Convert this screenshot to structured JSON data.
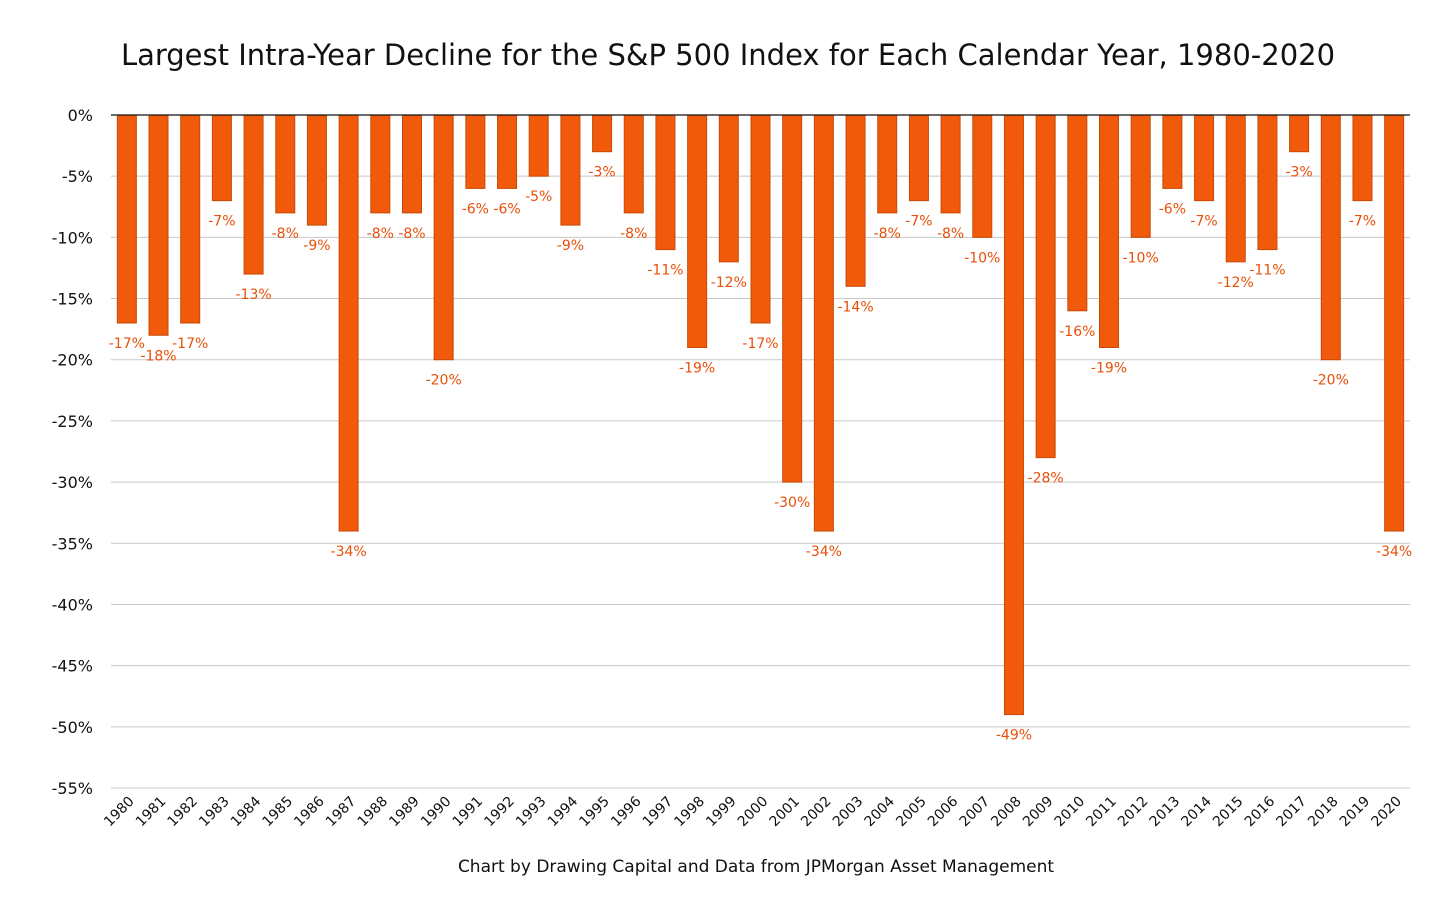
{
  "chart_data": {
    "type": "bar",
    "title": "Largest Intra-Year Decline for the S&P 500 Index for Each Calendar Year, 1980-2020",
    "caption": "Chart by Drawing Capital and Data from JPMorgan Asset Management",
    "categories": [
      "1980",
      "1981",
      "1982",
      "1983",
      "1984",
      "1985",
      "1986",
      "1987",
      "1988",
      "1989",
      "1990",
      "1991",
      "1992",
      "1993",
      "1994",
      "1995",
      "1996",
      "1997",
      "1998",
      "1999",
      "2000",
      "2001",
      "2002",
      "2003",
      "2004",
      "2005",
      "2006",
      "2007",
      "2008",
      "2009",
      "2010",
      "2011",
      "2012",
      "2013",
      "2014",
      "2015",
      "2016",
      "2017",
      "2018",
      "2019",
      "2020"
    ],
    "values": [
      -17,
      -18,
      -17,
      -7,
      -13,
      -8,
      -9,
      -34,
      -8,
      -8,
      -20,
      -6,
      -6,
      -5,
      -9,
      -3,
      -8,
      -11,
      -19,
      -12,
      -17,
      -30,
      -34,
      -14,
      -8,
      -7,
      -8,
      -10,
      -49,
      -28,
      -16,
      -19,
      -10,
      -6,
      -7,
      -12,
      -11,
      -3,
      -20,
      -7,
      -34
    ],
    "data_labels": [
      "-17%",
      "-18%",
      "-17%",
      "-7%",
      "-13%",
      "-8%",
      "-9%",
      "-34%",
      "-8%",
      "-8%",
      "-20%",
      "-6%",
      "-6%",
      "-5%",
      "-9%",
      "-3%",
      "-8%",
      "-11%",
      "-19%",
      "-12%",
      "-17%",
      "-30%",
      "-34%",
      "-14%",
      "-8%",
      "-7%",
      "-8%",
      "-10%",
      "-49%",
      "-28%",
      "-16%",
      "-19%",
      "-10%",
      "-6%",
      "-7%",
      "-12%",
      "-11%",
      "-3%",
      "-20%",
      "-7%",
      "-34%"
    ],
    "y_ticks": [
      0,
      -5,
      -10,
      -15,
      -20,
      -25,
      -30,
      -35,
      -40,
      -45,
      -50,
      -55
    ],
    "y_tick_labels": [
      "0%",
      "-5%",
      "-10%",
      "-15%",
      "-20%",
      "-25%",
      "-30%",
      "-35%",
      "-40%",
      "-45%",
      "-50%",
      "-55%"
    ],
    "ylim": [
      -55,
      0
    ],
    "xlabel": "",
    "ylabel": "",
    "grid": true,
    "legend": "none",
    "bar_color": "#F05A0A",
    "bar_edge_color": "#C84A08",
    "label_color": "#E8500A",
    "grid_color": "#C8C8C8",
    "axis_color": "#111111"
  }
}
